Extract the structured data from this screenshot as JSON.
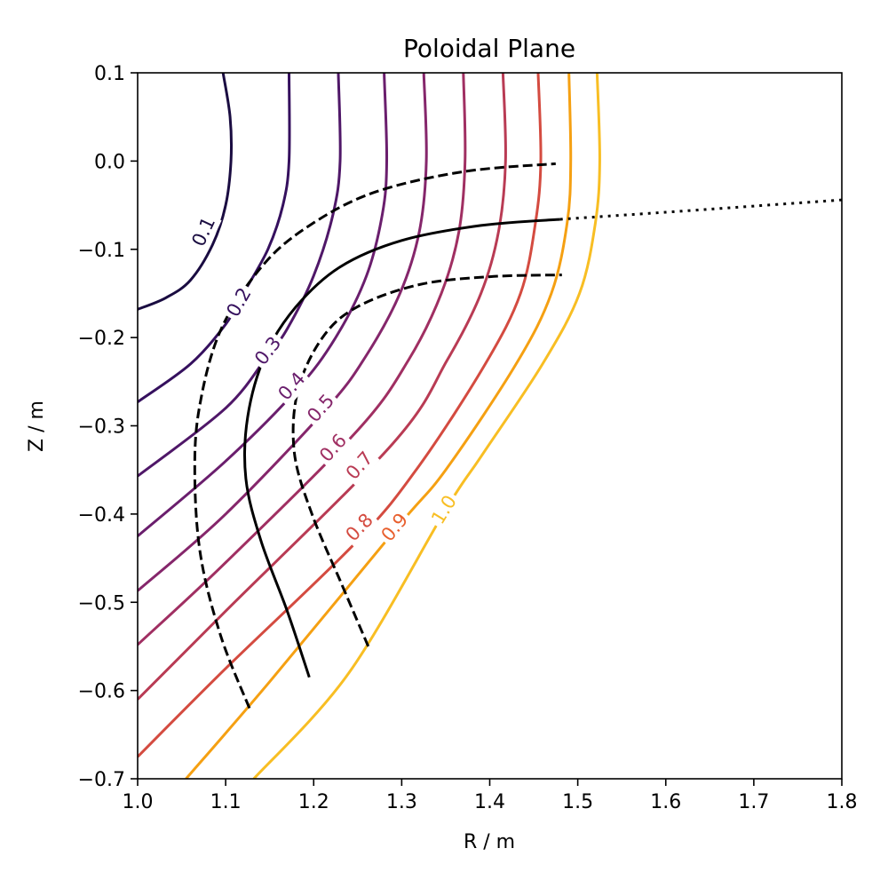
{
  "chart_data": {
    "type": "line",
    "title": "Poloidal Plane",
    "xlabel": "R / m",
    "ylabel": "Z / m",
    "xlim": [
      1.0,
      1.8
    ],
    "ylim": [
      -0.7,
      0.1
    ],
    "grid": false,
    "x_ticks": [
      1.0,
      1.1,
      1.2,
      1.3,
      1.4,
      1.5,
      1.6,
      1.7,
      1.8
    ],
    "x_tick_labels": [
      "1.0",
      "1.1",
      "1.2",
      "1.3",
      "1.4",
      "1.5",
      "1.6",
      "1.7",
      "1.8"
    ],
    "y_ticks": [
      0.1,
      0.0,
      -0.1,
      -0.2,
      -0.3,
      -0.4,
      -0.5,
      -0.6,
      -0.7
    ],
    "y_tick_labels": [
      "0.1",
      "0.0",
      "−0.1",
      "−0.2",
      "−0.3",
      "−0.4",
      "−0.5",
      "−0.6",
      "−0.7"
    ],
    "contours": [
      {
        "level": 0.1,
        "label": "0.1",
        "color": "#1a0c41",
        "label_at": [
          1.075,
          -0.08
        ],
        "points": [
          [
            1.097,
            0.1
          ],
          [
            1.105,
            0.05
          ],
          [
            1.106,
            0.0
          ],
          [
            1.1,
            -0.05
          ],
          [
            1.085,
            -0.095
          ],
          [
            1.06,
            -0.135
          ],
          [
            1.032,
            -0.155
          ],
          [
            1.0,
            -0.168
          ]
        ]
      },
      {
        "level": 0.2,
        "label": "0.2",
        "color": "#35105e",
        "label_at": [
          1.115,
          -0.16
        ],
        "points": [
          [
            1.172,
            0.1
          ],
          [
            1.172,
            0.0
          ],
          [
            1.165,
            -0.05
          ],
          [
            1.148,
            -0.1
          ],
          [
            1.12,
            -0.15
          ],
          [
            1.1,
            -0.185
          ],
          [
            1.06,
            -0.23
          ],
          [
            1.0,
            -0.273
          ]
        ]
      },
      {
        "level": 0.3,
        "label": "0.3",
        "color": "#4f1768",
        "label_at": [
          1.148,
          -0.215
        ],
        "points": [
          [
            1.228,
            0.1
          ],
          [
            1.23,
            0.0
          ],
          [
            1.222,
            -0.06
          ],
          [
            1.2,
            -0.13
          ],
          [
            1.17,
            -0.19
          ],
          [
            1.148,
            -0.22
          ],
          [
            1.1,
            -0.28
          ],
          [
            1.0,
            -0.357
          ]
        ]
      },
      {
        "level": 0.4,
        "label": "0.4",
        "color": "#6a1e6d",
        "label_at": [
          1.175,
          -0.255
        ],
        "points": [
          [
            1.28,
            0.1
          ],
          [
            1.283,
            0.0
          ],
          [
            1.278,
            -0.06
          ],
          [
            1.26,
            -0.13
          ],
          [
            1.225,
            -0.2
          ],
          [
            1.18,
            -0.26
          ],
          [
            1.1,
            -0.34
          ],
          [
            1.0,
            -0.425
          ]
        ]
      },
      {
        "level": 0.5,
        "label": "0.5",
        "color": "#85266b",
        "label_at": [
          1.208,
          -0.28
        ],
        "points": [
          [
            1.325,
            0.1
          ],
          [
            1.328,
            0.0
          ],
          [
            1.32,
            -0.08
          ],
          [
            1.298,
            -0.15
          ],
          [
            1.26,
            -0.22
          ],
          [
            1.215,
            -0.28
          ],
          [
            1.1,
            -0.4
          ],
          [
            1.0,
            -0.487
          ]
        ]
      },
      {
        "level": 0.6,
        "label": "0.6",
        "color": "#a02f62",
        "label_at": [
          1.222,
          -0.325
        ],
        "points": [
          [
            1.37,
            0.1
          ],
          [
            1.372,
            0.0
          ],
          [
            1.365,
            -0.08
          ],
          [
            1.345,
            -0.15
          ],
          [
            1.308,
            -0.225
          ],
          [
            1.25,
            -0.305
          ],
          [
            1.1,
            -0.455
          ],
          [
            1.0,
            -0.548
          ]
        ]
      },
      {
        "level": 0.7,
        "label": "0.7",
        "color": "#b93b54",
        "label_at": [
          1.252,
          -0.345
        ],
        "points": [
          [
            1.415,
            0.1
          ],
          [
            1.418,
            0.0
          ],
          [
            1.41,
            -0.08
          ],
          [
            1.39,
            -0.15
          ],
          [
            1.352,
            -0.225
          ],
          [
            1.29,
            -0.32
          ],
          [
            1.1,
            -0.51
          ],
          [
            1.0,
            -0.61
          ]
        ]
      },
      {
        "level": 0.8,
        "label": "0.8",
        "color": "#d44b40",
        "label_at": [
          1.252,
          -0.415
        ],
        "points": [
          [
            1.455,
            0.1
          ],
          [
            1.458,
            0.0
          ],
          [
            1.452,
            -0.07
          ],
          [
            1.435,
            -0.15
          ],
          [
            1.395,
            -0.23
          ],
          [
            1.32,
            -0.345
          ],
          [
            1.25,
            -0.43
          ],
          [
            1.1,
            -0.575
          ],
          [
            1.0,
            -0.675
          ]
        ]
      },
      {
        "level": 0.9,
        "label": "0.9",
        "color": "#e85f2e",
        "label_at": [
          1.292,
          -0.415
        ],
        "points": [
          [
            1.49,
            0.1
          ],
          [
            1.492,
            0.0
          ],
          [
            1.488,
            -0.07
          ],
          [
            1.47,
            -0.15
          ],
          [
            1.43,
            -0.23
          ],
          [
            1.35,
            -0.35
          ],
          [
            1.295,
            -0.415
          ],
          [
            1.15,
            -0.59
          ],
          [
            1.055,
            -0.7
          ]
        ]
      },
      {
        "level": 1.0,
        "label": "1.0",
        "color": "#f8be23",
        "label_at": [
          1.348,
          -0.395
        ],
        "points": [
          [
            1.522,
            0.1
          ],
          [
            1.525,
            0.0
          ],
          [
            1.52,
            -0.07
          ],
          [
            1.502,
            -0.15
          ],
          [
            1.46,
            -0.23
          ],
          [
            1.39,
            -0.335
          ],
          [
            1.35,
            -0.395
          ],
          [
            1.24,
            -0.58
          ],
          [
            1.132,
            -0.7
          ]
        ]
      }
    ],
    "contour_line_color": "#f5a012",
    "lines": [
      {
        "style": "solid",
        "color": "#000000",
        "points": [
          [
            1.195,
            -0.585
          ],
          [
            1.17,
            -0.51
          ],
          [
            1.14,
            -0.43
          ],
          [
            1.123,
            -0.36
          ],
          [
            1.125,
            -0.29
          ],
          [
            1.145,
            -0.22
          ],
          [
            1.18,
            -0.165
          ],
          [
            1.23,
            -0.12
          ],
          [
            1.3,
            -0.09
          ],
          [
            1.39,
            -0.073
          ],
          [
            1.48,
            -0.066
          ]
        ]
      },
      {
        "style": "dashed",
        "color": "#000000",
        "points": [
          [
            1.127,
            -0.62
          ],
          [
            1.095,
            -0.54
          ],
          [
            1.072,
            -0.45
          ],
          [
            1.065,
            -0.36
          ],
          [
            1.07,
            -0.28
          ],
          [
            1.095,
            -0.19
          ],
          [
            1.145,
            -0.115
          ],
          [
            1.2,
            -0.07
          ],
          [
            1.27,
            -0.035
          ],
          [
            1.37,
            -0.012
          ],
          [
            1.475,
            -0.003
          ]
        ]
      },
      {
        "style": "dashed",
        "color": "#000000",
        "points": [
          [
            1.262,
            -0.55
          ],
          [
            1.232,
            -0.48
          ],
          [
            1.198,
            -0.4
          ],
          [
            1.178,
            -0.33
          ],
          [
            1.182,
            -0.26
          ],
          [
            1.21,
            -0.2
          ],
          [
            1.25,
            -0.165
          ],
          [
            1.32,
            -0.14
          ],
          [
            1.4,
            -0.131
          ],
          [
            1.482,
            -0.129
          ]
        ]
      },
      {
        "style": "dotted",
        "color": "#000000",
        "points": [
          [
            1.48,
            -0.066
          ],
          [
            1.6,
            -0.058
          ],
          [
            1.7,
            -0.051
          ],
          [
            1.8,
            -0.044
          ]
        ]
      }
    ]
  }
}
